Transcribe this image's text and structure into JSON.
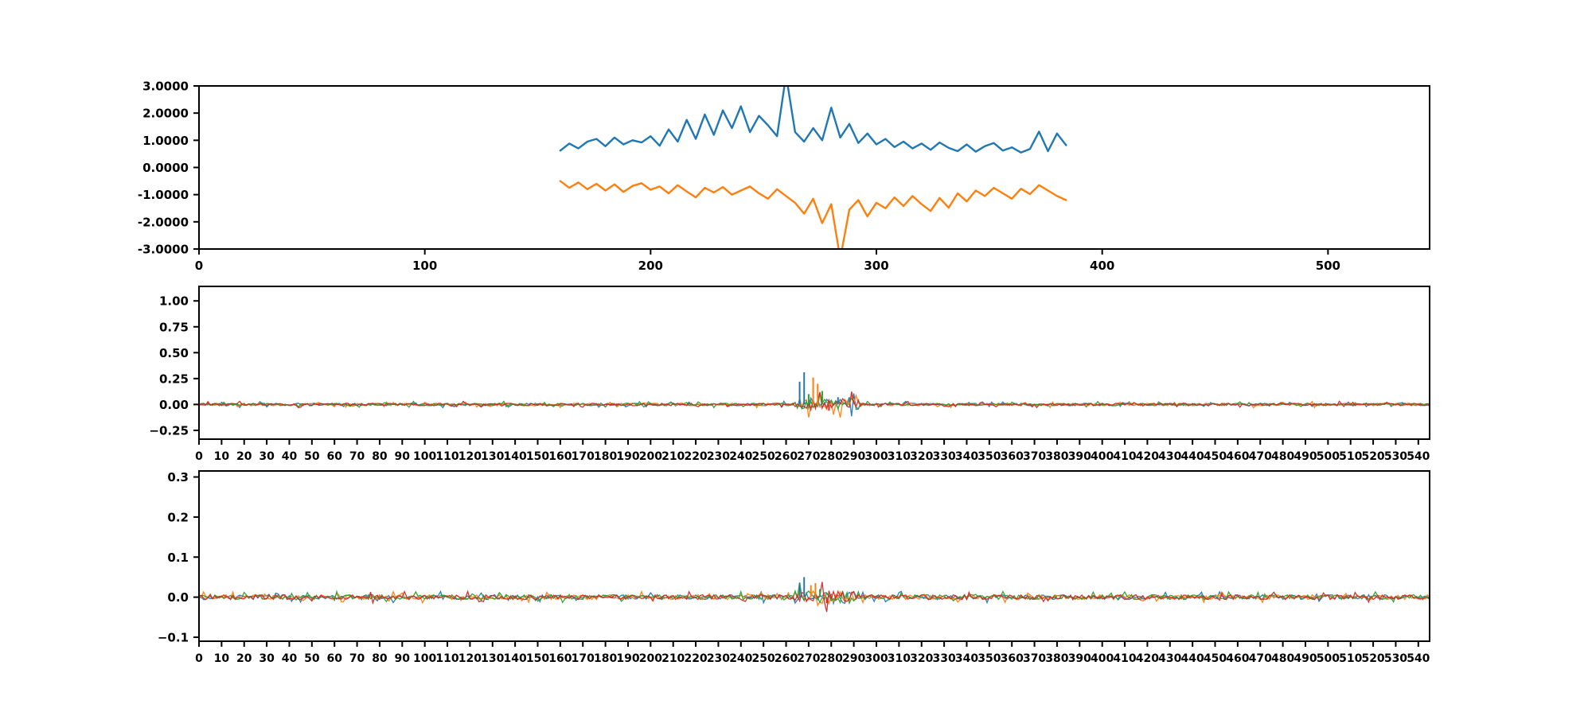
{
  "figure": {
    "background": "#ffffff"
  },
  "palette": {
    "blue": "#1f77b4",
    "orange": "#ff7f0e",
    "green": "#2ca02c",
    "red": "#d62728",
    "axis": "#000000"
  },
  "chart_data": [
    {
      "type": "line",
      "name": "signal-lines",
      "title": "",
      "xlabel": "",
      "ylabel": "",
      "xlim": [
        0,
        545
      ],
      "ylim": [
        -3,
        3
      ],
      "grid": false,
      "legend": "none",
      "xticks": [
        0,
        100,
        200,
        300,
        400,
        500
      ],
      "ytick_values": [
        3,
        2,
        1,
        0,
        -1,
        -2,
        -3
      ],
      "ytick_labels": [
        "3.0000",
        "2.0000",
        "1.0000",
        "0.0000",
        "-1.0000",
        "-2.0000",
        "-3.0000"
      ],
      "series": [
        {
          "name": "upper-signal",
          "color": "#1f77b4",
          "x_start": 160,
          "x_step": 4,
          "values": [
            0.62,
            0.88,
            0.7,
            0.95,
            1.05,
            0.78,
            1.1,
            0.85,
            1.0,
            0.92,
            1.15,
            0.8,
            1.4,
            0.95,
            1.75,
            1.05,
            1.95,
            1.2,
            2.1,
            1.45,
            2.25,
            1.3,
            1.9,
            1.55,
            1.15,
            3.4,
            1.3,
            0.95,
            1.45,
            1.0,
            2.2,
            1.1,
            1.6,
            0.9,
            1.25,
            0.85,
            1.05,
            0.75,
            0.95,
            0.7,
            0.88,
            0.65,
            0.92,
            0.72,
            0.6,
            0.85,
            0.58,
            0.78,
            0.9,
            0.62,
            0.74,
            0.55,
            0.68,
            1.32,
            0.6,
            1.25,
            0.82
          ]
        },
        {
          "name": "lower-signal",
          "color": "#ff7f0e",
          "x_start": 160,
          "x_step": 4,
          "values": [
            -0.5,
            -0.75,
            -0.55,
            -0.8,
            -0.6,
            -0.85,
            -0.62,
            -0.9,
            -0.68,
            -0.58,
            -0.82,
            -0.7,
            -0.95,
            -0.65,
            -0.88,
            -1.1,
            -0.75,
            -0.92,
            -0.72,
            -1.0,
            -0.85,
            -0.7,
            -0.95,
            -1.15,
            -0.8,
            -1.05,
            -1.3,
            -1.7,
            -1.15,
            -2.05,
            -1.35,
            -3.35,
            -1.55,
            -1.2,
            -1.8,
            -1.3,
            -1.5,
            -1.1,
            -1.42,
            -1.05,
            -1.35,
            -1.6,
            -1.12,
            -1.48,
            -0.95,
            -1.25,
            -0.85,
            -1.05,
            -0.75,
            -0.95,
            -1.15,
            -0.78,
            -0.98,
            -0.65,
            -0.85,
            -1.05,
            -1.2
          ]
        }
      ]
    },
    {
      "type": "stem-noise",
      "name": "residual-a",
      "title": "",
      "xlabel": "",
      "ylabel": "",
      "xlim": [
        0,
        545
      ],
      "ylim": [
        -0.335,
        1.14
      ],
      "grid": false,
      "legend": "none",
      "xticks": [
        0,
        10,
        20,
        30,
        40,
        50,
        60,
        70,
        80,
        90,
        100,
        110,
        120,
        130,
        140,
        150,
        160,
        170,
        180,
        190,
        200,
        210,
        220,
        230,
        240,
        250,
        260,
        270,
        280,
        290,
        300,
        310,
        320,
        330,
        340,
        350,
        360,
        370,
        380,
        390,
        400,
        410,
        420,
        430,
        440,
        450,
        460,
        470,
        480,
        490,
        500,
        510,
        520,
        530,
        540
      ],
      "ytick_values": [
        1.0,
        0.75,
        0.5,
        0.25,
        0.0,
        -0.25
      ],
      "ytick_labels": [
        "1.00",
        "0.75",
        "0.50",
        "0.25",
        "0.00",
        "−0.25"
      ],
      "noise": {
        "seed": 42,
        "amplitude": 0.012,
        "spread_prob": 0.12,
        "spread_mult": 2.6,
        "colors": [
          "#1f77b4",
          "#ff7f0e",
          "#2ca02c",
          "#d62728"
        ],
        "burst": {
          "x_start": 264,
          "x_end": 292,
          "amplitude": 0.05
        }
      },
      "spikes": [
        {
          "x": 266,
          "v": 0.22,
          "color": "#1f77b4"
        },
        {
          "x": 268,
          "v": 0.31,
          "color": "#1f77b4"
        },
        {
          "x": 270,
          "v": 0.1,
          "color": "#2ca02c"
        },
        {
          "x": 272,
          "v": 0.26,
          "color": "#ff7f0e"
        },
        {
          "x": 274,
          "v": 0.2,
          "color": "#ff7f0e"
        },
        {
          "x": 276,
          "v": 0.13,
          "color": "#2ca02c"
        },
        {
          "x": 279,
          "v": -0.06,
          "color": "#d62728"
        },
        {
          "x": 283,
          "v": 0.07,
          "color": "#1f77b4"
        }
      ]
    },
    {
      "type": "stem-noise",
      "name": "residual-b",
      "title": "",
      "xlabel": "",
      "ylabel": "",
      "xlim": [
        0,
        545
      ],
      "ylim": [
        -0.11,
        0.315
      ],
      "grid": false,
      "legend": "none",
      "xticks": [
        0,
        10,
        20,
        30,
        40,
        50,
        60,
        70,
        80,
        90,
        100,
        110,
        120,
        130,
        140,
        150,
        160,
        170,
        180,
        190,
        200,
        210,
        220,
        230,
        240,
        250,
        260,
        270,
        280,
        290,
        300,
        310,
        320,
        330,
        340,
        350,
        360,
        370,
        380,
        390,
        400,
        410,
        420,
        430,
        440,
        450,
        460,
        470,
        480,
        490,
        500,
        510,
        520,
        530,
        540
      ],
      "ytick_values": [
        0.3,
        0.2,
        0.1,
        0.0,
        -0.1
      ],
      "ytick_labels": [
        "0.3",
        "0.2",
        "0.1",
        "0.0",
        "−0.1"
      ],
      "noise": {
        "seed": 99,
        "amplitude": 0.006,
        "spread_prob": 0.1,
        "spread_mult": 2.4,
        "colors": [
          "#1f77b4",
          "#ff7f0e",
          "#2ca02c",
          "#d62728"
        ],
        "burst": {
          "x_start": 264,
          "x_end": 290,
          "amplitude": 0.016
        }
      },
      "spikes": [
        {
          "x": 266,
          "v": 0.035,
          "color": "#1f77b4"
        },
        {
          "x": 268,
          "v": 0.05,
          "color": "#1f77b4"
        },
        {
          "x": 271,
          "v": 0.03,
          "color": "#ff7f0e"
        },
        {
          "x": 273,
          "v": 0.035,
          "color": "#ff7f0e"
        },
        {
          "x": 275,
          "v": 0.02,
          "color": "#2ca02c"
        },
        {
          "x": 278,
          "v": -0.015,
          "color": "#d62728"
        }
      ]
    }
  ]
}
